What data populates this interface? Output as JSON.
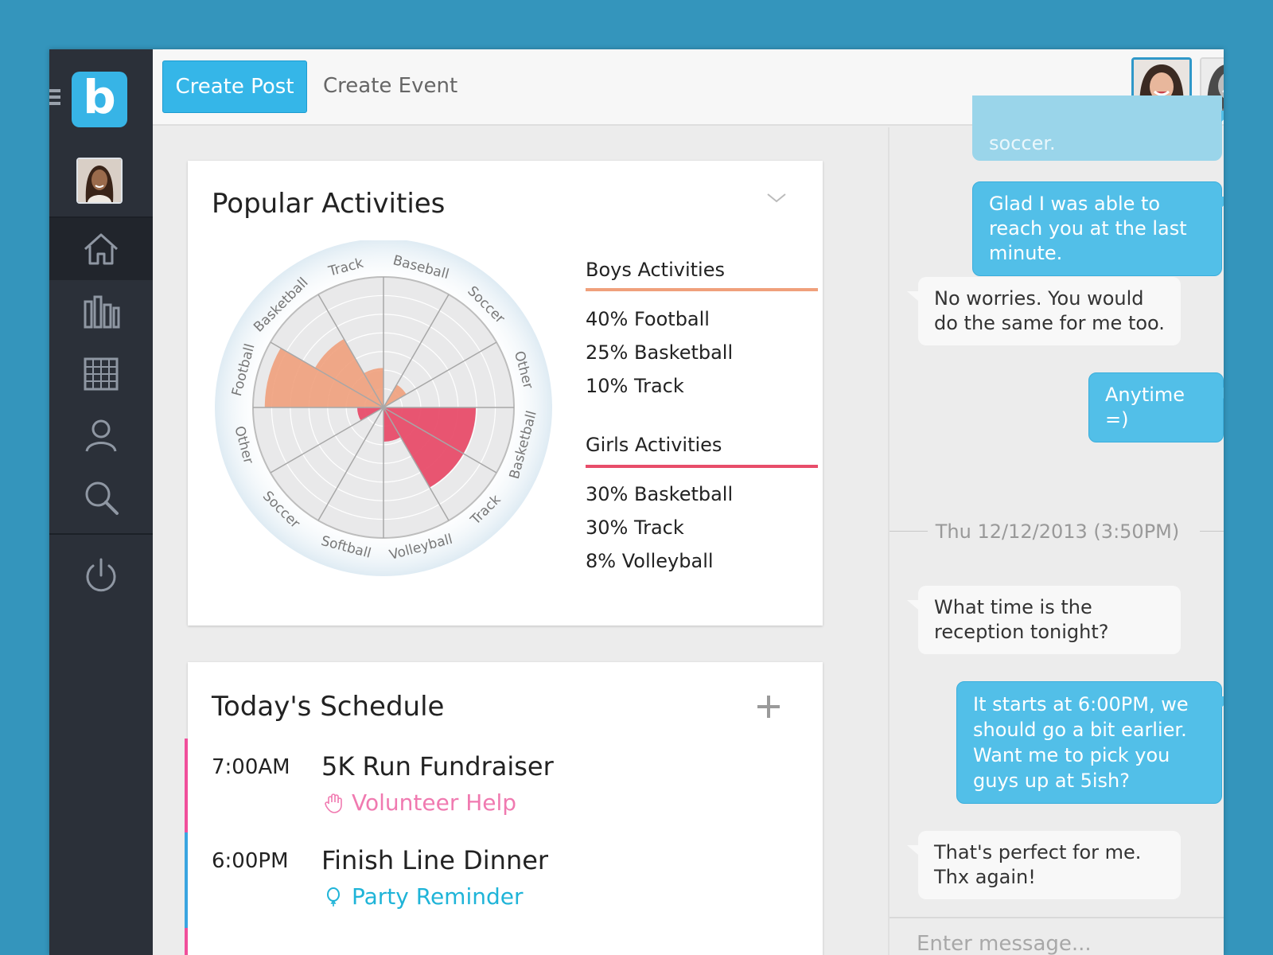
{
  "toolbar": {
    "create_post_label": "Create Post",
    "create_event_label": "Create Event"
  },
  "sidebar": {
    "logo_letter": "b",
    "nav": [
      "home-icon",
      "stats-icon",
      "calendar-icon",
      "profile-icon",
      "search-icon",
      "power-icon"
    ],
    "active_nav": "home-icon"
  },
  "popular": {
    "title": "Popular Activities",
    "boys": {
      "heading": "Boys Activities",
      "color": "#f0a07c",
      "items": [
        "40% Football",
        "25% Basketball",
        "10% Track"
      ]
    },
    "girls": {
      "heading": "Girls Activities",
      "color": "#e84d6a",
      "items": [
        "30% Basketball",
        "30% Track",
        "8% Volleyball"
      ]
    }
  },
  "chart_data": {
    "type": "polar-area",
    "title": "Popular Activities",
    "boys_labels": [
      "Football",
      "Basketball",
      "Track",
      "Baseball",
      "Soccer",
      "Other"
    ],
    "girls_labels": [
      "Basketball",
      "Track",
      "Volleyball",
      "Softball",
      "Soccer",
      "Other"
    ],
    "series": [
      {
        "name": "Boys Activities",
        "color": "#f0a07c",
        "values": [
          40,
          25,
          10,
          0,
          5,
          0
        ]
      },
      {
        "name": "Girls Activities",
        "color": "#e84d6a",
        "values": [
          30,
          30,
          8,
          0,
          0,
          5
        ]
      }
    ],
    "ylim": [
      0,
      40
    ],
    "grid": true
  },
  "schedule": {
    "title": "Today's Schedule",
    "events": [
      {
        "time": "7:00AM",
        "title": "5K Run Fundraiser",
        "tag": "Volunteer Help",
        "tag_color": "#f07ab0",
        "bar_color": "#f04f9b",
        "icon": "hand-icon"
      },
      {
        "time": "6:00PM",
        "title": "Finish Line Dinner",
        "tag": "Party Reminder",
        "tag_color": "#1fb4d8",
        "bar_color": "#3aa5e0",
        "icon": "balloon-icon"
      }
    ]
  },
  "chat": {
    "messages": [
      {
        "text": "soccer.",
        "dir": "out"
      },
      {
        "text": "Glad I was able to reach you at the last minute.",
        "dir": "out"
      },
      {
        "text": "No worries.  You would do the same for me too.",
        "dir": "in"
      },
      {
        "text": "Anytime =)",
        "dir": "out"
      },
      {
        "text": "What time is the reception tonight?",
        "dir": "in"
      },
      {
        "text": "It starts at 6:00PM, we should go a bit earlier.  Want me to pick you guys up at 5ish?",
        "dir": "out"
      },
      {
        "text": "That's perfect for me.  Thx again!",
        "dir": "in"
      }
    ],
    "divider": "Thu 12/12/2013 (3:50PM)",
    "input_placeholder": "Enter message..."
  }
}
